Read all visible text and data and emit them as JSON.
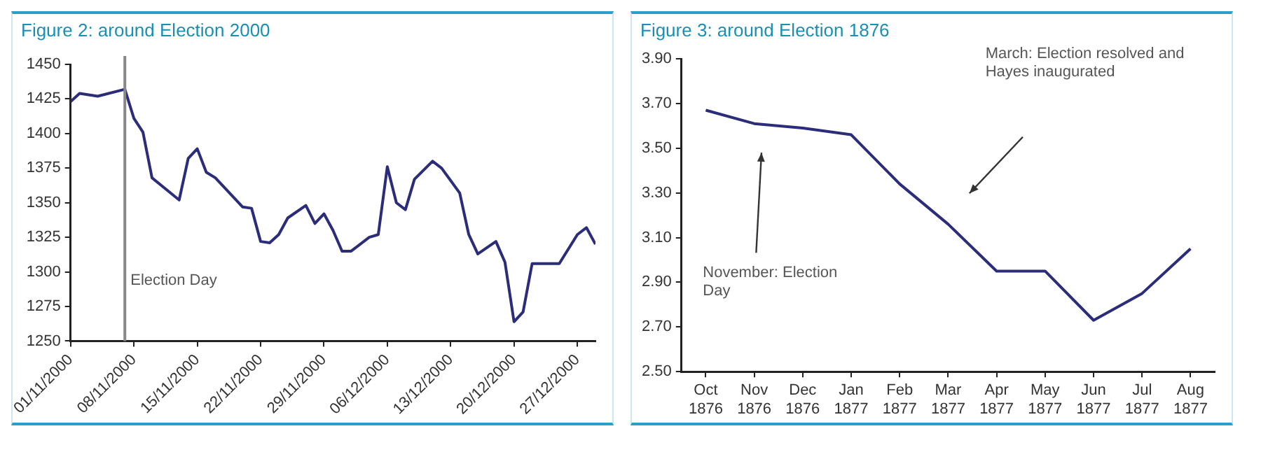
{
  "chart_data": [
    {
      "type": "line",
      "title": "Figure 2: around Election 2000",
      "color": "#2b2d7a",
      "x": [
        "2000-11-01",
        "2000-11-02",
        "2000-11-04",
        "2000-11-07",
        "2000-11-08",
        "2000-11-09",
        "2000-11-10",
        "2000-11-13",
        "2000-11-14",
        "2000-11-15",
        "2000-11-16",
        "2000-11-17",
        "2000-11-20",
        "2000-11-21",
        "2000-11-22",
        "2000-11-23",
        "2000-11-24",
        "2000-11-25",
        "2000-11-27",
        "2000-11-28",
        "2000-11-29",
        "2000-11-30",
        "2000-12-01",
        "2000-12-02",
        "2000-12-04",
        "2000-12-05",
        "2000-12-06",
        "2000-12-07",
        "2000-12-08",
        "2000-12-09",
        "2000-12-11",
        "2000-12-12",
        "2000-12-14",
        "2000-12-15",
        "2000-12-16",
        "2000-12-18",
        "2000-12-19",
        "2000-12-20",
        "2000-12-21",
        "2000-12-22",
        "2000-12-25",
        "2000-12-27",
        "2000-12-28",
        "2000-12-29"
      ],
      "values": [
        1423,
        1429,
        1427,
        1432,
        1411,
        1401,
        1368,
        1352,
        1382,
        1389,
        1372,
        1368,
        1347,
        1346,
        1322,
        1321,
        1327,
        1339,
        1348,
        1335,
        1342,
        1330,
        1315,
        1315,
        1325,
        1327,
        1376,
        1350,
        1345,
        1367,
        1380,
        1375,
        1357,
        1327,
        1313,
        1322,
        1307,
        1264,
        1271,
        1306,
        1306,
        1327,
        1332,
        1320
      ],
      "xlim": [
        "2000-11-01",
        "2000-12-29"
      ],
      "xticks": [
        {
          "value": "2000-11-01",
          "label": "01/11/2000"
        },
        {
          "value": "2000-11-08",
          "label": "08/11/2000"
        },
        {
          "value": "2000-11-15",
          "label": "15/11/2000"
        },
        {
          "value": "2000-11-22",
          "label": "22/11/2000"
        },
        {
          "value": "2000-11-29",
          "label": "29/11/2000"
        },
        {
          "value": "2000-12-06",
          "label": "06/12/2000"
        },
        {
          "value": "2000-12-13",
          "label": "13/12/2000"
        },
        {
          "value": "2000-12-20",
          "label": "20/12/2000"
        },
        {
          "value": "2000-12-27",
          "label": "27/12/2000"
        }
      ],
      "ylim": [
        1250,
        1450
      ],
      "yticks": [
        1250,
        1275,
        1300,
        1325,
        1350,
        1375,
        1400,
        1425,
        1450
      ],
      "ref_lines": [
        {
          "axis": "x",
          "value": "2000-11-07",
          "label": "Election Day",
          "color": "#888888"
        }
      ],
      "grid": false,
      "legend": false,
      "marker": "none",
      "line_style": "solid"
    },
    {
      "type": "line",
      "title": "Figure 3: around Election 1876",
      "color": "#2b2d7a",
      "categories": [
        "Oct 1876",
        "Nov 1876",
        "Dec 1876",
        "Jan 1877",
        "Feb 1877",
        "Mar 1877",
        "Apr 1877",
        "May 1877",
        "Jun 1877",
        "Jul 1877",
        "Aug 1877"
      ],
      "values": [
        3.67,
        3.61,
        3.59,
        3.56,
        3.34,
        3.16,
        2.95,
        2.95,
        2.73,
        2.85,
        3.05
      ],
      "ylim": [
        2.5,
        3.9
      ],
      "yticks": [
        {
          "value": 2.5,
          "label": "2.50"
        },
        {
          "value": 2.7,
          "label": "2.70"
        },
        {
          "value": 2.9,
          "label": "2.90"
        },
        {
          "value": 3.1,
          "label": "3.10"
        },
        {
          "value": 3.3,
          "label": "3.30"
        },
        {
          "value": 3.5,
          "label": "3.50"
        },
        {
          "value": 3.7,
          "label": "3.70"
        },
        {
          "value": 3.9,
          "label": "3.90"
        }
      ],
      "annotations": [
        "November: Election Day",
        "March: Election resolved and Hayes inaugurated"
      ],
      "grid": false,
      "legend": false,
      "marker": "none",
      "line_style": "solid"
    }
  ]
}
